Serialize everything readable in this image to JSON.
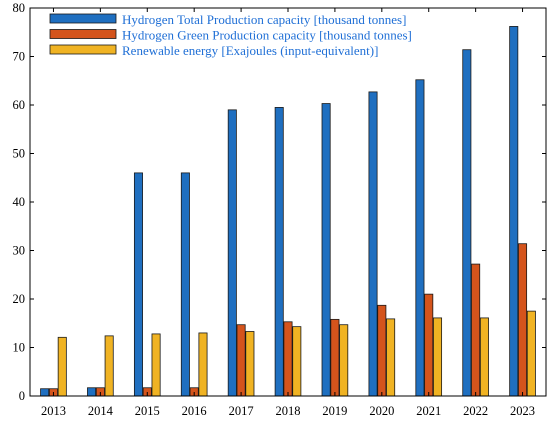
{
  "chart_data": {
    "type": "bar",
    "title": "",
    "xlabel": "",
    "ylabel": "",
    "ylim": [
      0,
      80
    ],
    "yticks": [
      0,
      10,
      20,
      30,
      40,
      50,
      60,
      70,
      80
    ],
    "categories": [
      "2013",
      "2014",
      "2015",
      "2016",
      "2017",
      "2018",
      "2019",
      "2020",
      "2021",
      "2022",
      "2023"
    ],
    "grid": false,
    "legend_position": "top-left",
    "series": [
      {
        "name": "Hydrogen Total Production capacity  [thousand tonnes]",
        "color": "#1f6fc0",
        "values": [
          1.5,
          1.7,
          46,
          46,
          59,
          59.5,
          60.3,
          62.7,
          65.2,
          71.4,
          76.2
        ]
      },
      {
        "name": "Hydrogen Green Production capacity  [thousand tonnes]",
        "color": "#d4541c",
        "values": [
          1.5,
          1.7,
          1.7,
          1.7,
          14.7,
          15.3,
          15.8,
          18.7,
          21.0,
          27.2,
          31.4
        ]
      },
      {
        "name": "Renewable energy  [Exajoules (input-equivalent)]",
        "color": "#f0b323",
        "values": [
          12.1,
          12.4,
          12.8,
          13.0,
          13.3,
          14.3,
          14.7,
          15.9,
          16.1,
          16.1,
          17.5
        ]
      }
    ]
  }
}
